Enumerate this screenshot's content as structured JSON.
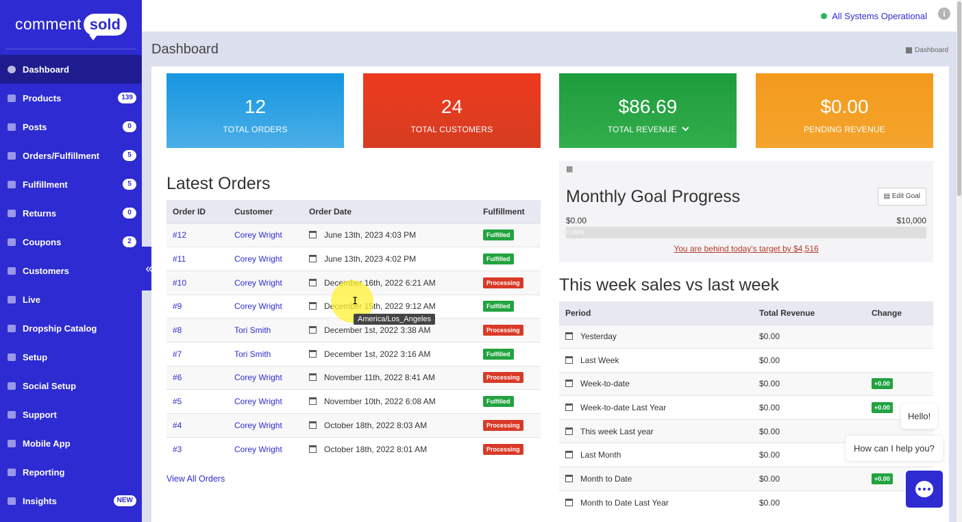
{
  "brand": {
    "logo_text": "comment",
    "logo_bubble": "sold"
  },
  "sidebar": {
    "items": [
      {
        "label": "Dashboard",
        "badge": ""
      },
      {
        "label": "Products",
        "badge": "139"
      },
      {
        "label": "Posts",
        "badge": "0"
      },
      {
        "label": "Orders/Fulfillment",
        "badge": "5"
      },
      {
        "label": "Fulfillment",
        "badge": "5"
      },
      {
        "label": "Returns",
        "badge": "0"
      },
      {
        "label": "Coupons",
        "badge": "2"
      },
      {
        "label": "Customers",
        "badge": ""
      },
      {
        "label": "Live",
        "badge": ""
      },
      {
        "label": "Dropship Catalog",
        "badge": ""
      },
      {
        "label": "Setup",
        "badge": ""
      },
      {
        "label": "Social Setup",
        "badge": ""
      },
      {
        "label": "Support",
        "badge": ""
      },
      {
        "label": "Mobile App",
        "badge": ""
      },
      {
        "label": "Reporting",
        "badge": ""
      },
      {
        "label": "Insights",
        "badge": "NEW"
      }
    ],
    "collapse_glyph": "«"
  },
  "topbar": {
    "status": "All Systems Operational",
    "info_glyph": "i"
  },
  "page": {
    "title": "Dashboard",
    "breadcrumb": "Dashboard"
  },
  "stats": {
    "orders": {
      "value": "12",
      "label": "TOTAL ORDERS"
    },
    "customers": {
      "value": "24",
      "label": "TOTAL CUSTOMERS"
    },
    "revenue": {
      "value": "$86.69",
      "label": "TOTAL REVENUE"
    },
    "pending": {
      "value": "$0.00",
      "label": "PENDING REVENUE"
    }
  },
  "latest_orders": {
    "title": "Latest Orders",
    "columns": [
      "Order ID",
      "Customer",
      "Order Date",
      "Fulfillment"
    ],
    "rows": [
      {
        "id": "#12",
        "customer": "Corey Wright",
        "date": "June 13th, 2023 4:03 PM",
        "status": "Fulfilled"
      },
      {
        "id": "#11",
        "customer": "Corey Wright",
        "date": "June 13th, 2023 4:02 PM",
        "status": "Fulfilled"
      },
      {
        "id": "#10",
        "customer": "Corey Wright",
        "date": "December 16th, 2022 6:21 AM",
        "status": "Processing"
      },
      {
        "id": "#9",
        "customer": "Corey Wright",
        "date": "December 15th, 2022 9:12 AM",
        "status": "Fulfilled"
      },
      {
        "id": "#8",
        "customer": "Tori Smith",
        "date": "December 1st, 2022 3:38 AM",
        "status": "Processing"
      },
      {
        "id": "#7",
        "customer": "Tori Smith",
        "date": "December 1st, 2022 3:16 AM",
        "status": "Fulfilled"
      },
      {
        "id": "#6",
        "customer": "Corey Wright",
        "date": "November 11th, 2022 8:41 AM",
        "status": "Processing"
      },
      {
        "id": "#5",
        "customer": "Corey Wright",
        "date": "November 10th, 2022 6:08 AM",
        "status": "Fulfilled"
      },
      {
        "id": "#4",
        "customer": "Corey Wright",
        "date": "October 18th, 2022 8:03 AM",
        "status": "Processing"
      },
      {
        "id": "#3",
        "customer": "Corey Wright",
        "date": "October 18th, 2022 8:01 AM",
        "status": "Processing"
      }
    ],
    "view_all": "View All Orders"
  },
  "goal": {
    "title": "Monthly Goal Progress",
    "edit_label": "Edit Goal",
    "min": "$0.00",
    "max": "$10,000",
    "progress_text": "0.00%",
    "progress": 0,
    "message": "You are behind today's target by $4,516"
  },
  "weekly": {
    "title": "This week sales vs last week",
    "columns": [
      "Period",
      "Total Revenue",
      "Change"
    ],
    "rows": [
      {
        "period": "Yesterday",
        "revenue": "$0.00",
        "change": ""
      },
      {
        "period": "Last Week",
        "revenue": "$0.00",
        "change": ""
      },
      {
        "period": "Week-to-date",
        "revenue": "$0.00",
        "change": "+0.00"
      },
      {
        "period": "Week-to-date Last Year",
        "revenue": "$0.00",
        "change": "+0.00"
      },
      {
        "period": "This week Last year",
        "revenue": "$0.00",
        "change": ""
      },
      {
        "period": "Last Month",
        "revenue": "$0.00",
        "change": ""
      },
      {
        "period": "Month to Date",
        "revenue": "$0.00",
        "change": "+0.00"
      },
      {
        "period": "Month to Date Last Year",
        "revenue": "$0.00",
        "change": ""
      }
    ]
  },
  "tooltip": {
    "text": "America/Los_Angeles"
  },
  "chat": {
    "hello": "Hello!",
    "question": "How can I help you?"
  },
  "colors": {
    "brand": "#2d2bd1",
    "fulfilled": "#22a33f",
    "processing": "#d93a27",
    "status_dot": "#29b35a"
  }
}
